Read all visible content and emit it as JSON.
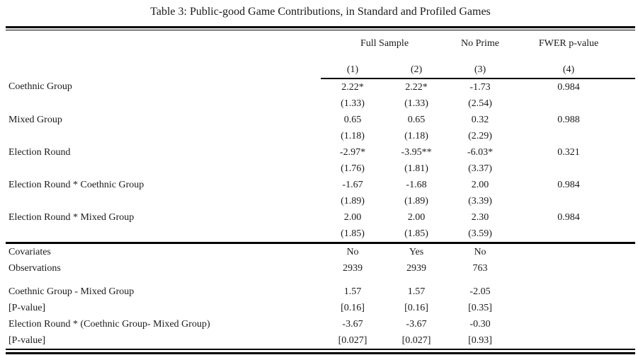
{
  "title": "Table 3: Public-good Game Contributions, in Standard and Profiled Games",
  "table": {
    "col_groups": [
      {
        "label": "Full Sample"
      },
      {
        "label": "No Prime"
      },
      {
        "label": "FWER p-value"
      }
    ],
    "col_numbers": [
      "(1)",
      "(2)",
      "(3)",
      "(4)"
    ],
    "coef_rows": [
      {
        "label": "Coethnic Group",
        "values": [
          "2.22*",
          "2.22*",
          "-1.73",
          "0.984"
        ],
        "se": [
          "(1.33)",
          "(1.33)",
          "(2.54)",
          ""
        ]
      },
      {
        "label": "Mixed Group",
        "values": [
          "0.65",
          "0.65",
          "0.32",
          "0.988"
        ],
        "se": [
          "(1.18)",
          "(1.18)",
          "(2.29)",
          ""
        ]
      },
      {
        "label": "Election Round",
        "values": [
          "-2.97*",
          "-3.95**",
          "-6.03*",
          "0.321"
        ],
        "se": [
          "(1.76)",
          "(1.81)",
          "(3.37)",
          ""
        ]
      },
      {
        "label": "Election Round * Coethnic Group",
        "values": [
          "-1.67",
          "-1.68",
          "2.00",
          "0.984"
        ],
        "se": [
          "(1.89)",
          "(1.89)",
          "(3.39)",
          ""
        ]
      },
      {
        "label": "Election Round * Mixed Group",
        "values": [
          "2.00",
          "2.00",
          "2.30",
          "0.984"
        ],
        "se": [
          "(1.85)",
          "(1.85)",
          "(3.59)",
          ""
        ]
      }
    ],
    "stat_rows": [
      {
        "label": "Covariates",
        "values": [
          "No",
          "Yes",
          "No",
          ""
        ],
        "section_top": true
      },
      {
        "label": "Observations",
        "values": [
          "2939",
          "2939",
          "763",
          ""
        ]
      },
      {
        "label": "Coethnic Group - Mixed Group",
        "values": [
          "1.57",
          "1.57",
          "-2.05",
          ""
        ],
        "gap_before": true
      },
      {
        "label": "[P-value]",
        "values": [
          "[0.16]",
          "[0.16]",
          "[0.35]",
          ""
        ]
      },
      {
        "label": "Election Round * (Coethnic Group- Mixed Group)",
        "values": [
          "-3.67",
          "-3.67",
          "-0.30",
          ""
        ]
      },
      {
        "label": "[P-value]",
        "values": [
          "[0.027]",
          "[0.027]",
          "[0.93]",
          ""
        ],
        "last": true
      }
    ]
  }
}
